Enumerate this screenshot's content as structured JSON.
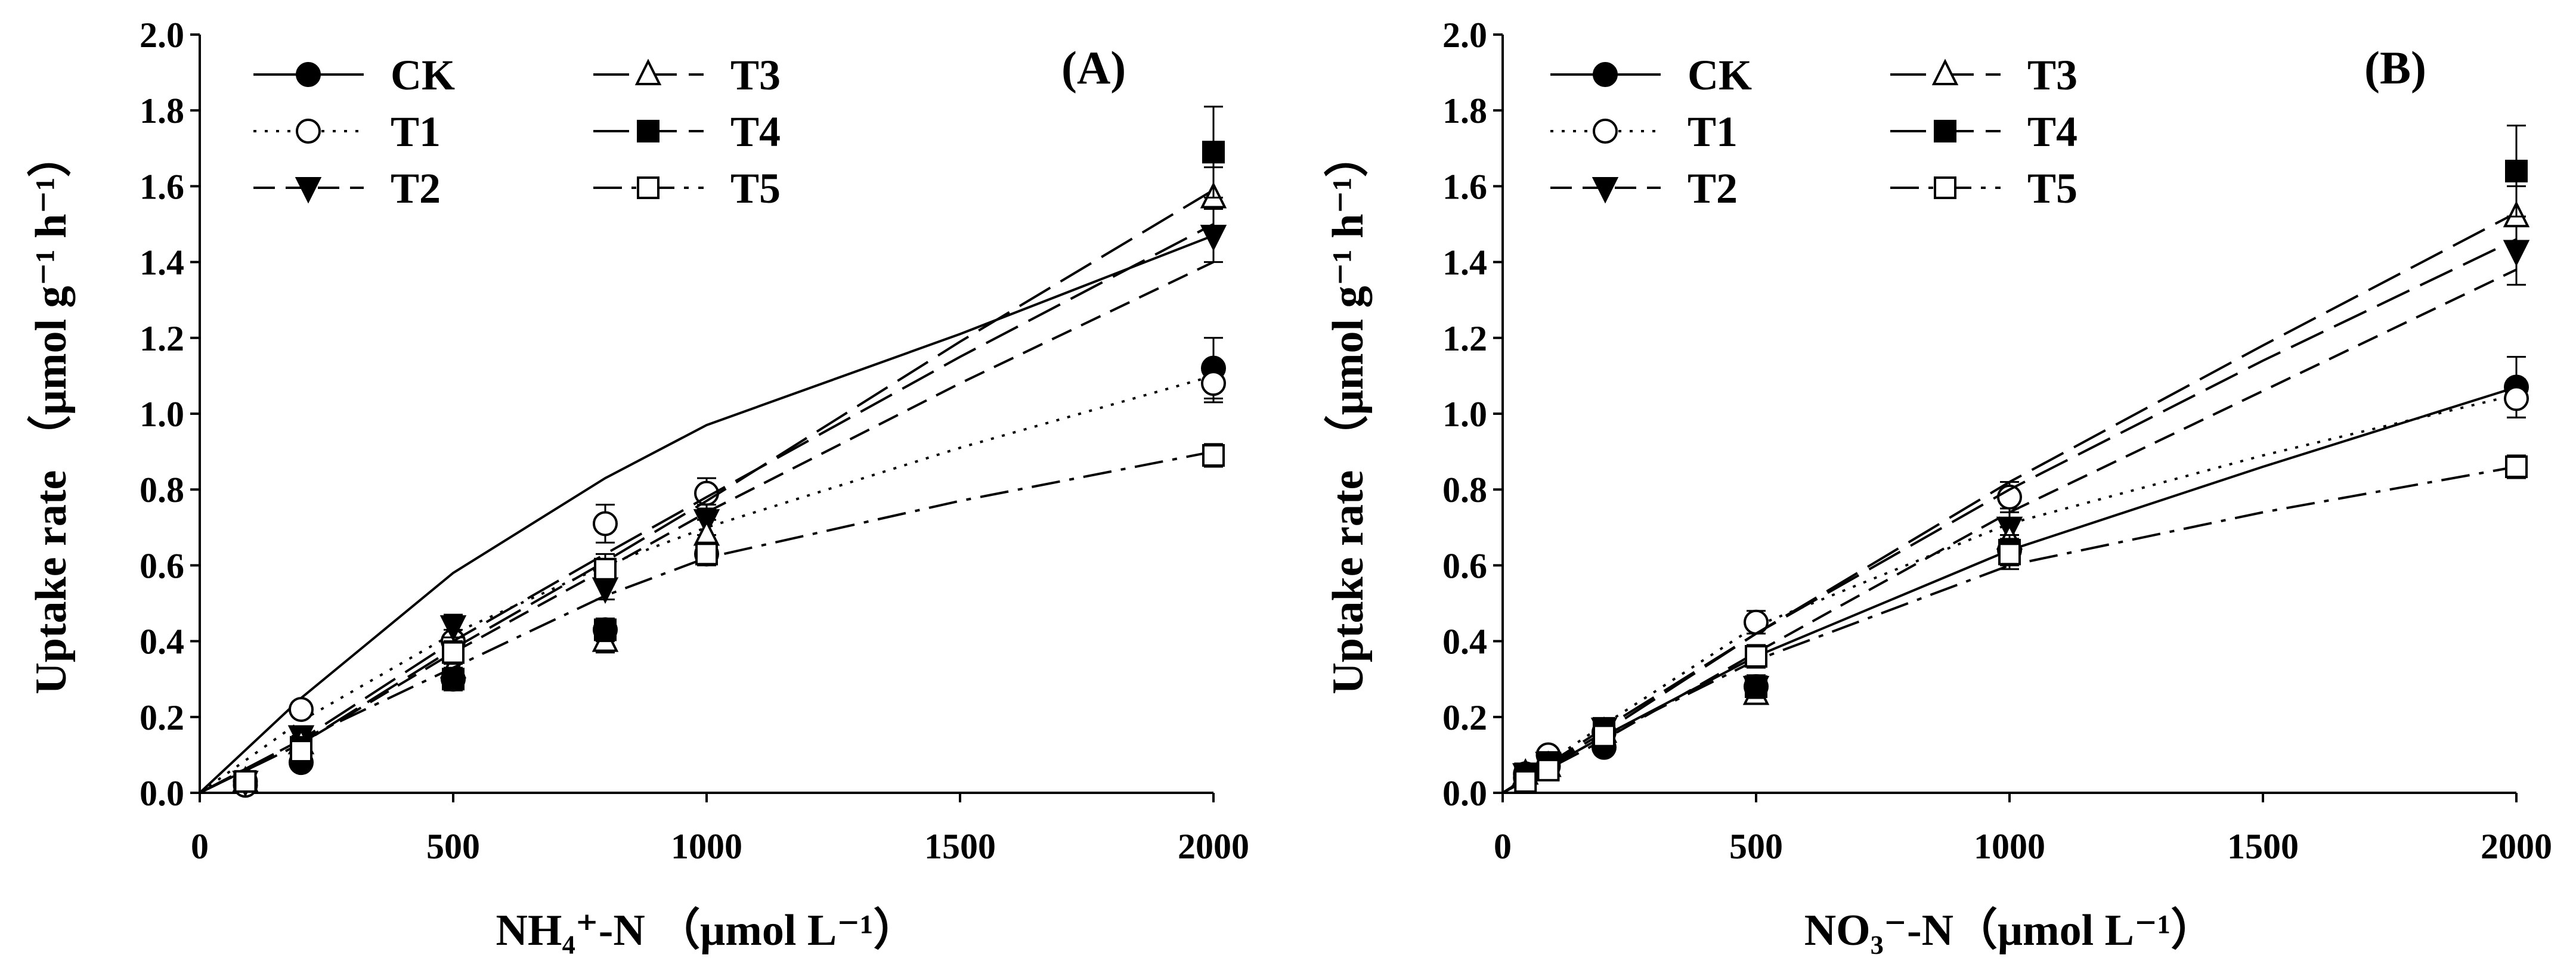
{
  "figure": {
    "panels": [
      "A",
      "B"
    ]
  },
  "chart_data": [
    {
      "type": "line",
      "panel_label": "(A)",
      "xlabel": "NH₄⁺-N （μmol L⁻¹）",
      "ylabel": "Uptake rate （μmol g⁻¹ h⁻¹）",
      "xlim": [
        0,
        2000
      ],
      "ylim": [
        0,
        2.0
      ],
      "xticks": [
        "0",
        "500",
        "1000",
        "1500",
        "2000"
      ],
      "yticks": [
        "0.0",
        "0.2",
        "0.4",
        "0.6",
        "0.8",
        "1.0",
        "1.2",
        "1.4",
        "1.6",
        "1.8",
        "2.0"
      ],
      "legend_position": "top-left",
      "series": [
        {
          "name": "CK",
          "marker": "filled-circle",
          "dash": "solid",
          "points": [
            [
              90,
              0.03
            ],
            [
              200,
              0.08
            ],
            [
              500,
              0.3
            ],
            [
              800,
              0.43
            ],
            [
              1000,
              0.63
            ],
            [
              2000,
              1.12
            ]
          ],
          "errors": [
            0.01,
            0.01,
            0.02,
            0.03,
            0.03,
            0.08
          ],
          "fit": [
            [
              0,
              0
            ],
            [
              200,
              0.25
            ],
            [
              500,
              0.58
            ],
            [
              800,
              0.83
            ],
            [
              1000,
              0.97
            ],
            [
              1500,
              1.21
            ],
            [
              2000,
              1.47
            ]
          ]
        },
        {
          "name": "T1",
          "marker": "open-circle",
          "dash": "dotted",
          "points": [
            [
              90,
              0.02
            ],
            [
              200,
              0.22
            ],
            [
              500,
              0.4
            ],
            [
              800,
              0.71
            ],
            [
              1000,
              0.79
            ],
            [
              2000,
              1.08
            ]
          ],
          "errors": [
            0.01,
            0.02,
            0.03,
            0.05,
            0.04,
            0.05
          ],
          "fit": [
            [
              0,
              0
            ],
            [
              200,
              0.19
            ],
            [
              500,
              0.42
            ],
            [
              800,
              0.6
            ],
            [
              1000,
              0.7
            ],
            [
              1500,
              0.91
            ],
            [
              2000,
              1.1
            ]
          ]
        },
        {
          "name": "T2",
          "marker": "filled-triangle-down",
          "dash": "dashed",
          "points": [
            [
              90,
              0.03
            ],
            [
              200,
              0.15
            ],
            [
              500,
              0.44
            ],
            [
              800,
              0.54
            ],
            [
              1000,
              0.72
            ],
            [
              2000,
              1.47
            ]
          ],
          "errors": [
            0.01,
            0.02,
            0.03,
            0.03,
            0.04,
            0.07
          ],
          "fit": [
            [
              0,
              0
            ],
            [
              200,
              0.13
            ],
            [
              500,
              0.37
            ],
            [
              800,
              0.59
            ],
            [
              1000,
              0.74
            ],
            [
              1500,
              1.08
            ],
            [
              2000,
              1.4
            ]
          ]
        },
        {
          "name": "T3",
          "marker": "open-triangle-up",
          "dash": "long-dash",
          "points": [
            [
              90,
              0.03
            ],
            [
              200,
              0.13
            ],
            [
              500,
              0.33
            ],
            [
              800,
              0.4
            ],
            [
              1000,
              0.68
            ],
            [
              2000,
              1.57
            ]
          ],
          "errors": [
            0.01,
            0.02,
            0.03,
            0.03,
            0.04,
            0.08
          ],
          "fit": [
            [
              0,
              0
            ],
            [
              200,
              0.13
            ],
            [
              500,
              0.38
            ],
            [
              800,
              0.61
            ],
            [
              1000,
              0.77
            ],
            [
              1500,
              1.19
            ],
            [
              2000,
              1.59
            ]
          ]
        },
        {
          "name": "T4",
          "marker": "filled-square",
          "dash": "long-dash",
          "points": [
            [
              90,
              0.03
            ],
            [
              200,
              0.12
            ],
            [
              500,
              0.3
            ],
            [
              800,
              0.43
            ],
            [
              1000,
              0.63
            ],
            [
              2000,
              1.69
            ]
          ],
          "errors": [
            0.01,
            0.02,
            0.03,
            0.03,
            0.03,
            0.12
          ],
          "fit": [
            [
              0,
              0
            ],
            [
              200,
              0.14
            ],
            [
              500,
              0.4
            ],
            [
              800,
              0.63
            ],
            [
              1000,
              0.78
            ],
            [
              1500,
              1.15
            ],
            [
              2000,
              1.5
            ]
          ]
        },
        {
          "name": "T5",
          "marker": "open-square",
          "dash": "dash-dot",
          "points": [
            [
              90,
              0.03
            ],
            [
              200,
              0.11
            ],
            [
              500,
              0.37
            ],
            [
              800,
              0.59
            ],
            [
              1000,
              0.63
            ],
            [
              2000,
              0.89
            ]
          ],
          "errors": [
            0.01,
            0.02,
            0.03,
            0.04,
            0.03,
            0.03
          ],
          "fit": [
            [
              0,
              0
            ],
            [
              200,
              0.14
            ],
            [
              500,
              0.33
            ],
            [
              800,
              0.52
            ],
            [
              1000,
              0.62
            ],
            [
              1500,
              0.77
            ],
            [
              2000,
              0.9
            ]
          ]
        }
      ]
    },
    {
      "type": "line",
      "panel_label": "(B)",
      "xlabel": "NO₃⁻-N（μmol L⁻¹）",
      "ylabel": "Uptake rate （μmol g⁻¹ h⁻¹）",
      "xlim": [
        0,
        2000
      ],
      "ylim": [
        0,
        2.0
      ],
      "xticks": [
        "0",
        "500",
        "1000",
        "1500",
        "2000"
      ],
      "yticks": [
        "0.0",
        "0.2",
        "0.4",
        "0.6",
        "0.8",
        "1.0",
        "1.2",
        "1.4",
        "1.6",
        "1.8",
        "2.0"
      ],
      "legend_position": "top-left",
      "series": [
        {
          "name": "CK",
          "marker": "filled-circle",
          "dash": "solid",
          "points": [
            [
              45,
              0.05
            ],
            [
              90,
              0.07
            ],
            [
              200,
              0.12
            ],
            [
              500,
              0.28
            ],
            [
              1000,
              0.64
            ],
            [
              2000,
              1.07
            ]
          ],
          "errors": [
            0.01,
            0.01,
            0.02,
            0.03,
            0.04,
            0.08
          ],
          "fit": [
            [
              0,
              0
            ],
            [
              200,
              0.15
            ],
            [
              500,
              0.36
            ],
            [
              1000,
              0.64
            ],
            [
              1500,
              0.86
            ],
            [
              2000,
              1.07
            ]
          ]
        },
        {
          "name": "T1",
          "marker": "open-circle",
          "dash": "dotted",
          "points": [
            [
              45,
              0.04
            ],
            [
              90,
              0.1
            ],
            [
              200,
              0.16
            ],
            [
              500,
              0.45
            ],
            [
              1000,
              0.78
            ],
            [
              2000,
              1.04
            ]
          ],
          "errors": [
            0.01,
            0.01,
            0.02,
            0.03,
            0.04,
            0.05
          ],
          "fit": [
            [
              0,
              0
            ],
            [
              200,
              0.18
            ],
            [
              500,
              0.44
            ],
            [
              1000,
              0.71
            ],
            [
              1500,
              0.89
            ],
            [
              2000,
              1.05
            ]
          ]
        },
        {
          "name": "T2",
          "marker": "filled-triangle-down",
          "dash": "dashed",
          "points": [
            [
              45,
              0.05
            ],
            [
              90,
              0.08
            ],
            [
              200,
              0.17
            ],
            [
              500,
              0.28
            ],
            [
              1000,
              0.7
            ],
            [
              2000,
              1.43
            ]
          ],
          "errors": [
            0.01,
            0.01,
            0.02,
            0.03,
            0.05,
            0.09
          ],
          "fit": [
            [
              0,
              0
            ],
            [
              200,
              0.14
            ],
            [
              500,
              0.37
            ],
            [
              1000,
              0.74
            ],
            [
              1500,
              1.06
            ],
            [
              2000,
              1.38
            ]
          ]
        },
        {
          "name": "T3",
          "marker": "open-triangle-up",
          "dash": "long-dash",
          "points": [
            [
              45,
              0.05
            ],
            [
              90,
              0.07
            ],
            [
              200,
              0.16
            ],
            [
              500,
              0.26
            ],
            [
              1000,
              0.67
            ],
            [
              2000,
              1.52
            ]
          ],
          "errors": [
            0.01,
            0.01,
            0.02,
            0.02,
            0.04,
            0.08
          ],
          "fit": [
            [
              0,
              0
            ],
            [
              200,
              0.16
            ],
            [
              500,
              0.42
            ],
            [
              1000,
              0.82
            ],
            [
              1500,
              1.18
            ],
            [
              2000,
              1.53
            ]
          ]
        },
        {
          "name": "T4",
          "marker": "filled-square",
          "dash": "long-dash",
          "points": [
            [
              45,
              0.05
            ],
            [
              90,
              0.08
            ],
            [
              200,
              0.17
            ],
            [
              500,
              0.28
            ],
            [
              1000,
              0.64
            ],
            [
              2000,
              1.64
            ]
          ],
          "errors": [
            0.01,
            0.01,
            0.02,
            0.03,
            0.04,
            0.12
          ],
          "fit": [
            [
              0,
              0
            ],
            [
              200,
              0.17
            ],
            [
              500,
              0.42
            ],
            [
              1000,
              0.8
            ],
            [
              1500,
              1.14
            ],
            [
              2000,
              1.46
            ]
          ]
        },
        {
          "name": "T5",
          "marker": "open-square",
          "dash": "dash-dot",
          "points": [
            [
              45,
              0.03
            ],
            [
              90,
              0.06
            ],
            [
              200,
              0.15
            ],
            [
              500,
              0.36
            ],
            [
              1000,
              0.63
            ],
            [
              2000,
              0.86
            ]
          ],
          "errors": [
            0.01,
            0.01,
            0.02,
            0.03,
            0.04,
            0.03
          ],
          "fit": [
            [
              0,
              0
            ],
            [
              200,
              0.15
            ],
            [
              500,
              0.35
            ],
            [
              1000,
              0.6
            ],
            [
              1500,
              0.74
            ],
            [
              2000,
              0.86
            ]
          ]
        }
      ]
    }
  ]
}
